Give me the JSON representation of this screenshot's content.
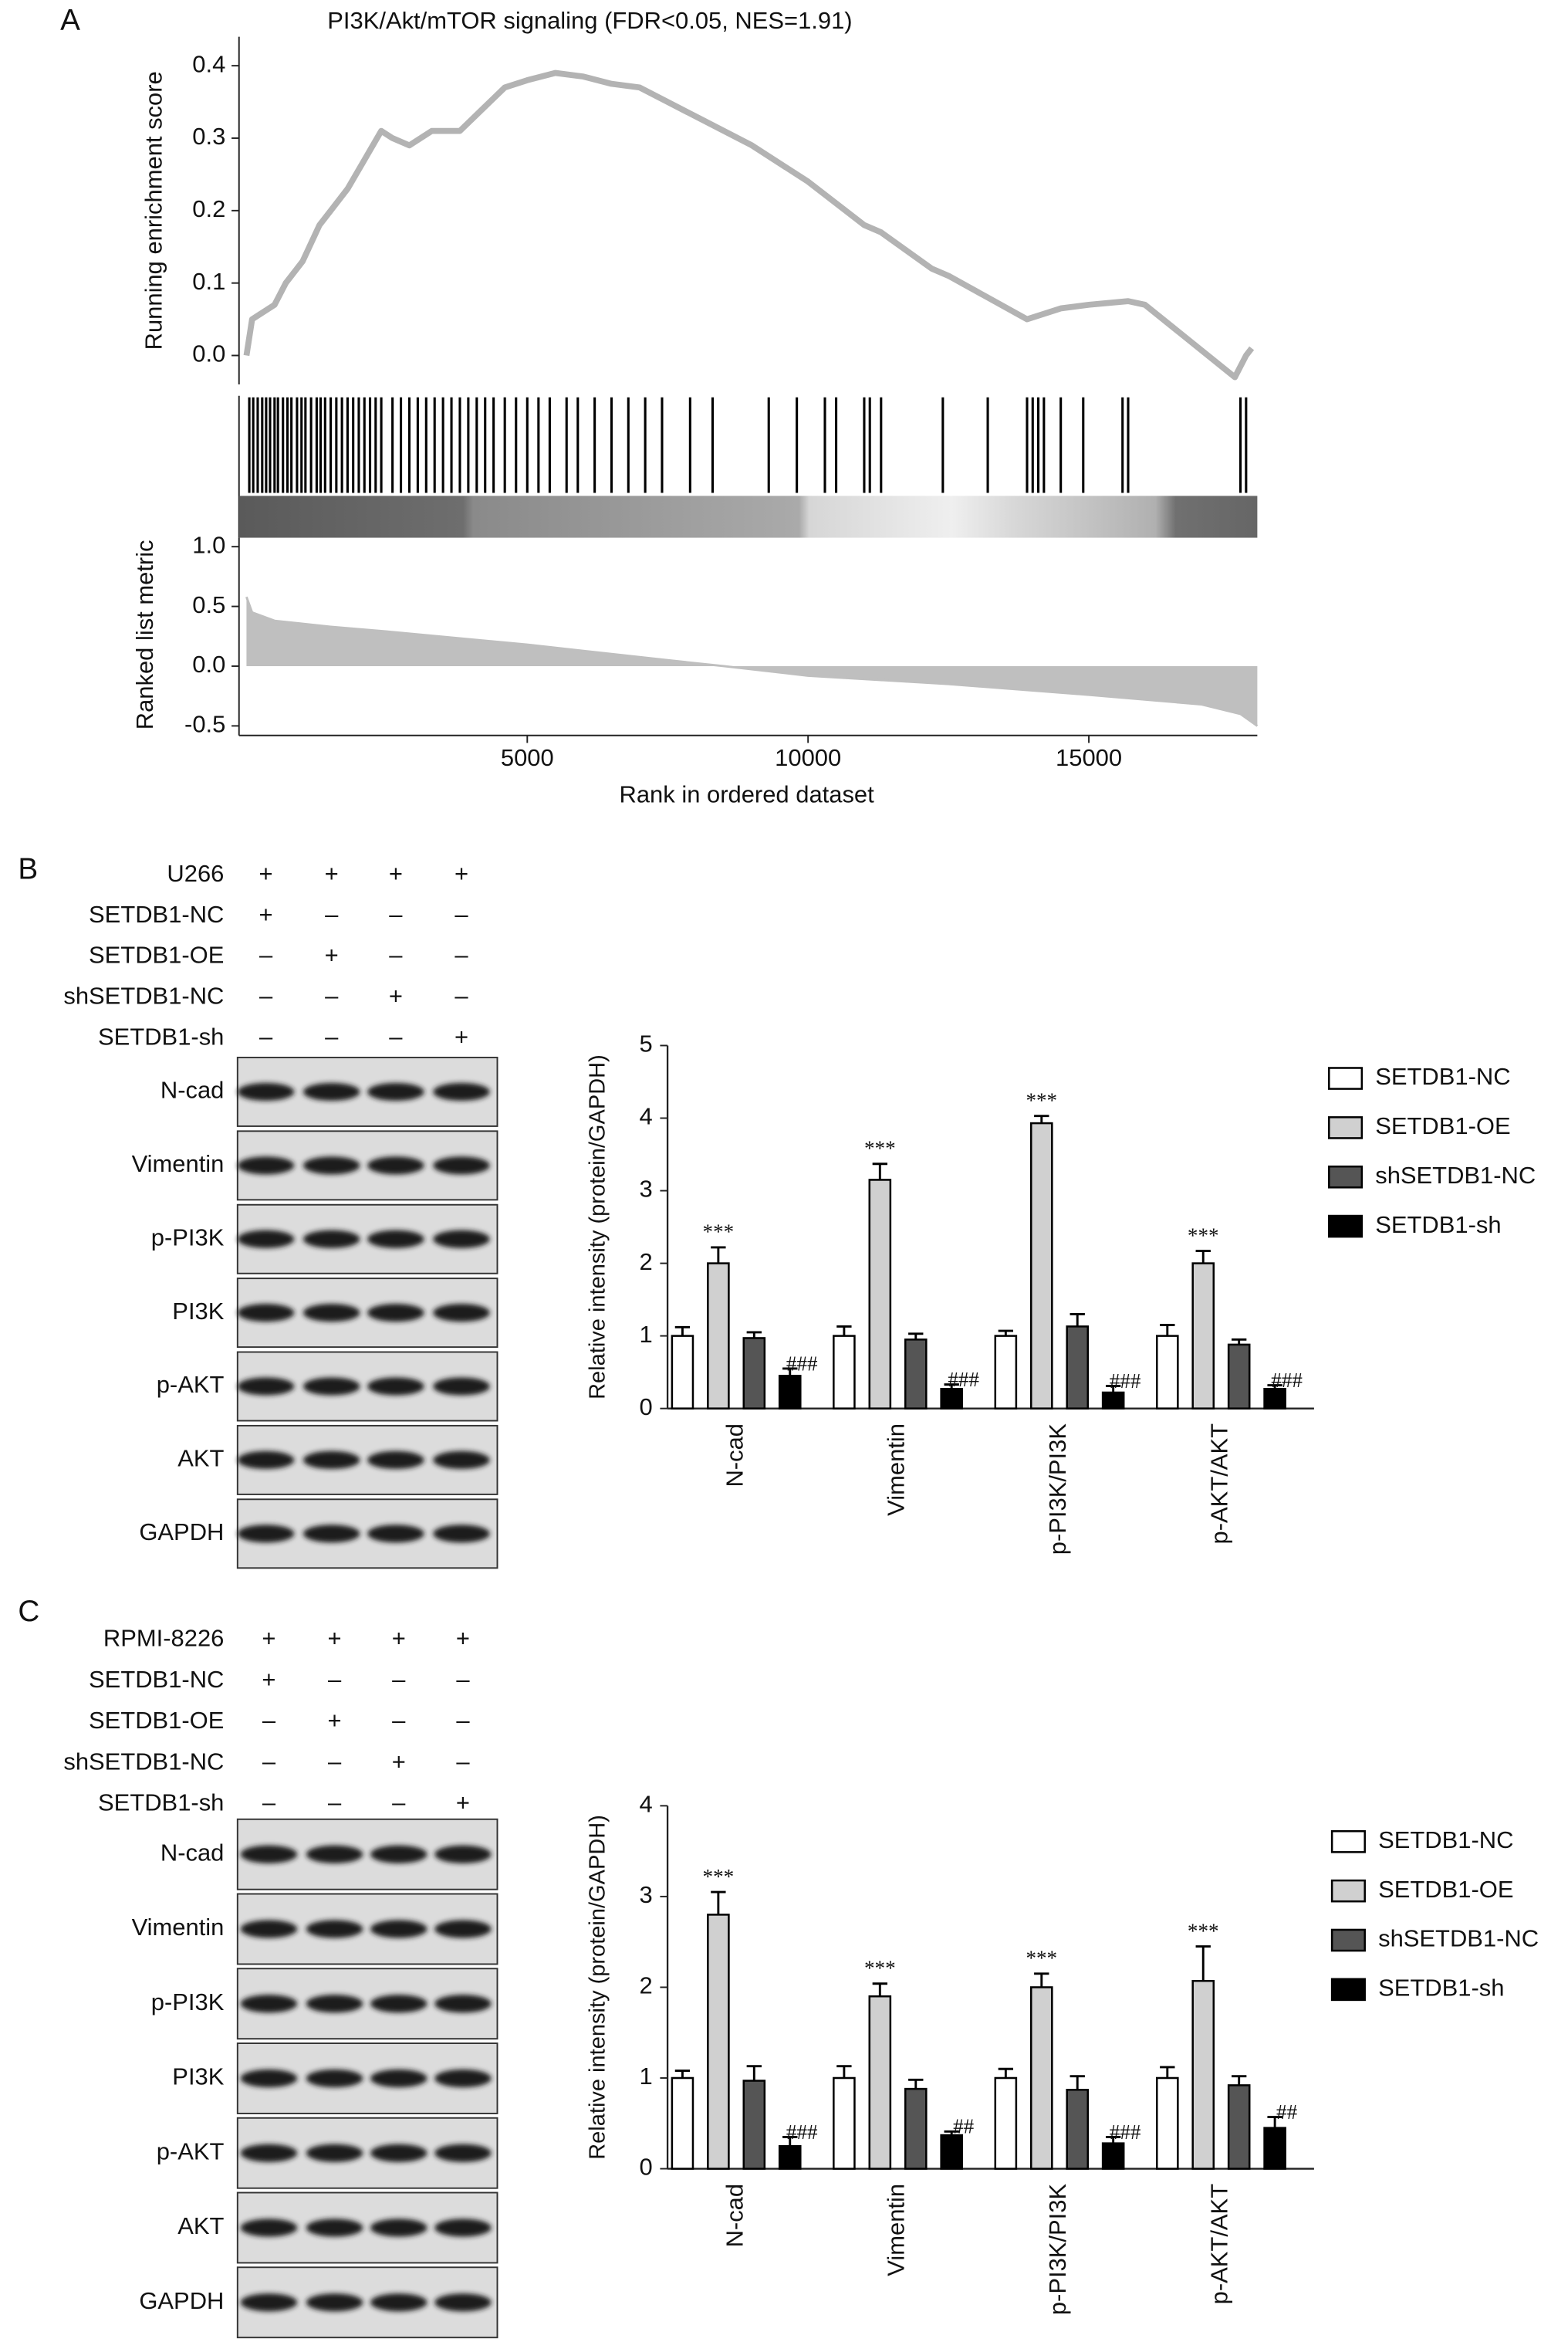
{
  "chart_data": [
    {
      "type": "gsea",
      "panel_label": "A",
      "title": "PI3K/Akt/mTOR signaling (FDR<0.05, NES=1.91)",
      "xlabel": "Rank in ordered dataset",
      "xlim": [
        0,
        18000
      ],
      "xticks": [
        5000,
        10000,
        15000
      ],
      "score": {
        "ylabel": "Running enrichment score",
        "color": "#b3b3b3",
        "ylim": [
          -0.04,
          0.44
        ],
        "yticks": [
          {
            "value": 0,
            "label": "0.0"
          },
          0.1,
          0.2,
          0.3,
          0.4
        ],
        "x": [
          0,
          100,
          300,
          500,
          700,
          1000,
          1300,
          1500,
          1800,
          2100,
          2400,
          2600,
          2900,
          3300,
          3800,
          4200,
          4600,
          5000,
          5500,
          6000,
          6500,
          7000,
          7500,
          8000,
          9000,
          10000,
          11000,
          11300,
          12200,
          12500,
          13900,
          14500,
          15000,
          15700,
          16000,
          17600,
          17800,
          17900
        ],
        "values": [
          0.0,
          0.05,
          0.06,
          0.07,
          0.1,
          0.13,
          0.18,
          0.2,
          0.23,
          0.27,
          0.31,
          0.3,
          0.29,
          0.31,
          0.31,
          0.34,
          0.37,
          0.38,
          0.39,
          0.385,
          0.375,
          0.37,
          0.35,
          0.33,
          0.29,
          0.24,
          0.18,
          0.17,
          0.12,
          0.11,
          0.05,
          0.065,
          0.07,
          0.075,
          0.07,
          -0.03,
          0.0,
          0.01
        ]
      },
      "hits": {
        "color": "#000000",
        "x": [
          50,
          120,
          200,
          280,
          350,
          420,
          500,
          560,
          650,
          730,
          800,
          900,
          980,
          1050,
          1150,
          1250,
          1320,
          1400,
          1500,
          1600,
          1700,
          1800,
          1900,
          2000,
          2100,
          2200,
          2300,
          2400,
          2600,
          2750,
          2900,
          3050,
          3200,
          3350,
          3500,
          3650,
          3800,
          3950,
          4100,
          4250,
          4400,
          4600,
          4800,
          5000,
          5200,
          5400,
          5700,
          5900,
          6200,
          6500,
          6800,
          7100,
          7400,
          7900,
          8300,
          9300,
          9800,
          10300,
          10500,
          11000,
          11100,
          11300,
          12400,
          13200,
          13900,
          14000,
          14100,
          14200,
          14500,
          14900,
          15600,
          15700,
          17700,
          17800
        ]
      },
      "metric": {
        "ylabel": "Ranked list metric",
        "color": "#bfbfbf",
        "ylim": [
          -0.58,
          1.09
        ],
        "yticks": [
          -0.5,
          {
            "value": 0,
            "label": "0.0"
          },
          0.5,
          {
            "value": 1,
            "label": "1.0"
          }
        ],
        "x": [
          0,
          100,
          500,
          1500,
          2500,
          5000,
          7500,
          8500,
          10000,
          12500,
          15000,
          17000,
          17700,
          18000
        ],
        "values": [
          0.58,
          0.45,
          0.38,
          0.33,
          0.29,
          0.18,
          0.05,
          0.0,
          -0.08,
          -0.15,
          -0.24,
          -0.32,
          -0.4,
          -0.5
        ]
      }
    },
    {
      "type": "bar",
      "ylabel": "Relative intensity (protein/GAPDH)",
      "categories": [
        "N-cad",
        "Vimentin",
        "p-PI3K/PI3K",
        "p-AKT/AKT"
      ],
      "ylim": [
        0,
        5
      ],
      "yticks": [
        0,
        1,
        2,
        3,
        4,
        5
      ],
      "legend": "right",
      "series": [
        {
          "name": "SETDB1-NC",
          "color": "#ffffff",
          "values": [
            1,
            1,
            1,
            1
          ],
          "errors": [
            0.12,
            0.13,
            0.07,
            0.15
          ]
        },
        {
          "name": "SETDB1-OE",
          "color": "#d0d0d0",
          "values": [
            2.0,
            3.15,
            3.93,
            2.0
          ],
          "errors": [
            0.22,
            0.22,
            0.1,
            0.17
          ],
          "annotations": [
            "***",
            "***",
            "***",
            "***"
          ]
        },
        {
          "name": "shSETDB1-NC",
          "color": "#555555",
          "values": [
            0.97,
            0.95,
            1.13,
            0.88
          ],
          "errors": [
            0.08,
            0.08,
            0.17,
            0.07
          ]
        },
        {
          "name": "SETDB1-sh",
          "color": "#000000",
          "values": [
            0.45,
            0.27,
            0.22,
            0.27
          ],
          "errors": [
            0.1,
            0.06,
            0.09,
            0.05
          ],
          "annotations": [
            "###",
            "###",
            "###",
            "###"
          ]
        }
      ]
    },
    {
      "type": "bar",
      "ylabel": "Relative intensity (protein/GAPDH)",
      "categories": [
        "N-cad",
        "Vimentin",
        "p-PI3K/PI3K",
        "p-AKT/AKT"
      ],
      "ylim": [
        0,
        4
      ],
      "yticks": [
        0,
        1,
        2,
        3,
        4
      ],
      "legend": "right",
      "series": [
        {
          "name": "SETDB1-NC",
          "color": "#ffffff",
          "values": [
            1,
            1,
            1,
            1
          ],
          "errors": [
            0.08,
            0.13,
            0.1,
            0.12
          ]
        },
        {
          "name": "SETDB1-OE",
          "color": "#d0d0d0",
          "values": [
            2.8,
            1.9,
            2.0,
            2.07
          ],
          "errors": [
            0.25,
            0.14,
            0.15,
            0.38
          ],
          "annotations": [
            "***",
            "***",
            "***",
            "***"
          ]
        },
        {
          "name": "shSETDB1-NC",
          "color": "#555555",
          "values": [
            0.97,
            0.88,
            0.87,
            0.92
          ],
          "errors": [
            0.16,
            0.1,
            0.15,
            0.1
          ]
        },
        {
          "name": "SETDB1-sh",
          "color": "#000000",
          "values": [
            0.25,
            0.37,
            0.28,
            0.45
          ],
          "errors": [
            0.1,
            0.04,
            0.07,
            0.12
          ],
          "annotations": [
            "###",
            "##",
            "###",
            "##"
          ]
        }
      ]
    }
  ],
  "blots": [
    {
      "panel_label": "B",
      "conditions": [
        {
          "label": "U266",
          "signs": [
            "+",
            "+",
            "+",
            "+"
          ]
        },
        {
          "label": "SETDB1-NC",
          "signs": [
            "+",
            "–",
            "–",
            "–"
          ]
        },
        {
          "label": "SETDB1-OE",
          "signs": [
            "–",
            "+",
            "–",
            "–"
          ]
        },
        {
          "label": "shSETDB1-NC",
          "signs": [
            "–",
            "–",
            "+",
            "–"
          ]
        },
        {
          "label": "SETDB1-sh",
          "signs": [
            "–",
            "–",
            "–",
            "+"
          ]
        }
      ],
      "bands": [
        "N-cad",
        "Vimentin",
        "p-PI3K",
        "PI3K",
        "p-AKT",
        "AKT",
        "GAPDH"
      ]
    },
    {
      "panel_label": "C",
      "conditions": [
        {
          "label": "RPMI-8226",
          "signs": [
            "+",
            "+",
            "+",
            "+"
          ]
        },
        {
          "label": "SETDB1-NC",
          "signs": [
            "+",
            "–",
            "–",
            "–"
          ]
        },
        {
          "label": "SETDB1-OE",
          "signs": [
            "–",
            "+",
            "–",
            "–"
          ]
        },
        {
          "label": "shSETDB1-NC",
          "signs": [
            "–",
            "–",
            "+",
            "–"
          ]
        },
        {
          "label": "SETDB1-sh",
          "signs": [
            "–",
            "–",
            "–",
            "+"
          ]
        }
      ],
      "bands": [
        "N-cad",
        "Vimentin",
        "p-PI3K",
        "PI3K",
        "p-AKT",
        "AKT",
        "GAPDH"
      ]
    }
  ]
}
